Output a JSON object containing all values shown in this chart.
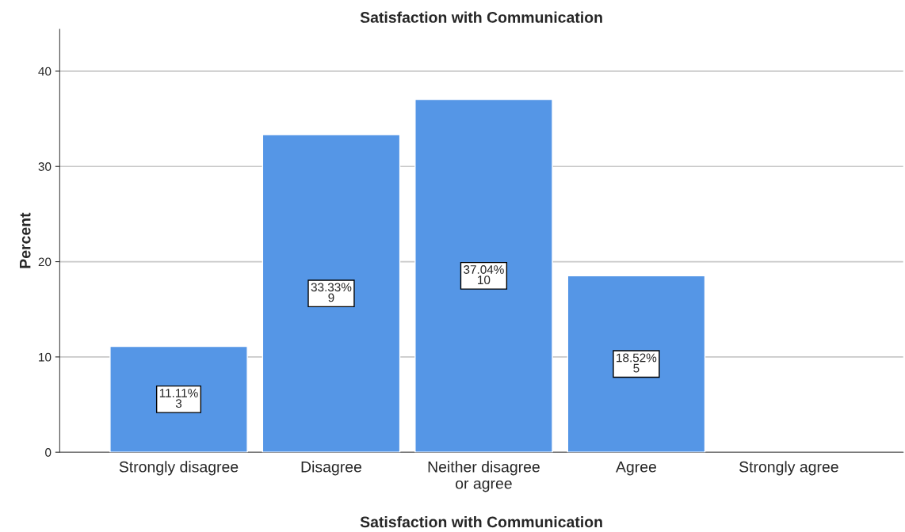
{
  "chart_data": {
    "type": "bar",
    "title": "Satisfaction with Communication",
    "xlabel": "Satisfaction with Communication",
    "ylabel": "Percent",
    "categories": [
      "Strongly disagree",
      "Disagree",
      "Neither disagree\nor agree",
      "Agree",
      "Strongly agree"
    ],
    "values": [
      11.11,
      33.33,
      37.04,
      18.52,
      null
    ],
    "value_labels": [
      "11.11%\n3",
      "33.33%\n9",
      "37.04%\n10",
      "18.52%\n5",
      null
    ],
    "color": "#5596e6",
    "ylim": [
      0,
      44.4
    ],
    "yticks": [
      0,
      10,
      20,
      30,
      40
    ],
    "grid": "y"
  }
}
